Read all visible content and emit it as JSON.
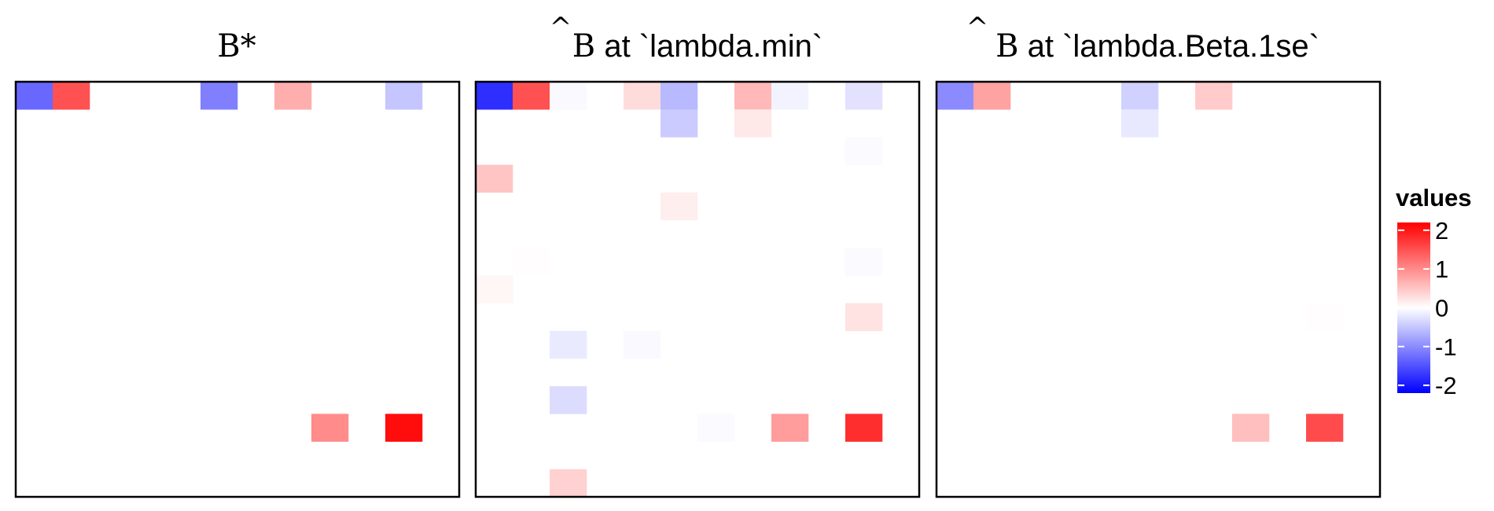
{
  "chart_data": {
    "type": "heatmap",
    "grid": {
      "rows": 15,
      "cols": 12
    },
    "color_scale": {
      "low": "#0000FF",
      "mid": "#FFFFFF",
      "high": "#FF0000",
      "domain": [
        -2.2,
        2.2
      ]
    },
    "legend": {
      "title": "values",
      "ticks": [
        2,
        1,
        0,
        -1,
        -2
      ],
      "tick_labels": [
        "2",
        "1",
        "0",
        "-1",
        "-2"
      ],
      "placement": "right"
    },
    "panels": [
      {
        "title_symbol": "B*",
        "title_hat": "",
        "title_suffix": "",
        "cells": [
          {
            "row": 0,
            "col": 0,
            "value": -1.3
          },
          {
            "row": 0,
            "col": 1,
            "value": 1.5
          },
          {
            "row": 0,
            "col": 5,
            "value": -1.1
          },
          {
            "row": 0,
            "col": 7,
            "value": 0.7
          },
          {
            "row": 0,
            "col": 10,
            "value": -0.5
          },
          {
            "row": 12,
            "col": 8,
            "value": 1.0
          },
          {
            "row": 12,
            "col": 10,
            "value": 2.1
          }
        ]
      },
      {
        "title_symbol": "B",
        "title_hat": "^",
        "title_suffix": " at `lambda.min`",
        "cells": [
          {
            "row": 0,
            "col": 0,
            "value": -1.8
          },
          {
            "row": 0,
            "col": 1,
            "value": 1.5
          },
          {
            "row": 0,
            "col": 2,
            "value": -0.05
          },
          {
            "row": 0,
            "col": 4,
            "value": 0.3
          },
          {
            "row": 0,
            "col": 5,
            "value": -0.6
          },
          {
            "row": 0,
            "col": 7,
            "value": 0.6
          },
          {
            "row": 0,
            "col": 8,
            "value": -0.1
          },
          {
            "row": 0,
            "col": 10,
            "value": -0.25
          },
          {
            "row": 1,
            "col": 5,
            "value": -0.45
          },
          {
            "row": 1,
            "col": 7,
            "value": 0.2
          },
          {
            "row": 2,
            "col": 10,
            "value": -0.04
          },
          {
            "row": 3,
            "col": 0,
            "value": 0.5
          },
          {
            "row": 4,
            "col": 5,
            "value": 0.15
          },
          {
            "row": 6,
            "col": 1,
            "value": 0.02
          },
          {
            "row": 6,
            "col": 10,
            "value": -0.04
          },
          {
            "row": 7,
            "col": 0,
            "value": 0.08
          },
          {
            "row": 8,
            "col": 10,
            "value": 0.25
          },
          {
            "row": 9,
            "col": 2,
            "value": -0.18
          },
          {
            "row": 9,
            "col": 4,
            "value": -0.05
          },
          {
            "row": 11,
            "col": 2,
            "value": -0.3
          },
          {
            "row": 12,
            "col": 6,
            "value": -0.04
          },
          {
            "row": 12,
            "col": 8,
            "value": 0.85
          },
          {
            "row": 12,
            "col": 10,
            "value": 1.8
          },
          {
            "row": 14,
            "col": 2,
            "value": 0.4
          }
        ]
      },
      {
        "title_symbol": "B",
        "title_hat": "^",
        "title_suffix": " at `lambda.Beta.1se`",
        "cells": [
          {
            "row": 0,
            "col": 0,
            "value": -1.0
          },
          {
            "row": 0,
            "col": 1,
            "value": 0.8
          },
          {
            "row": 0,
            "col": 5,
            "value": -0.4
          },
          {
            "row": 0,
            "col": 7,
            "value": 0.45
          },
          {
            "row": 1,
            "col": 5,
            "value": -0.2
          },
          {
            "row": 8,
            "col": 10,
            "value": 0.02
          },
          {
            "row": 12,
            "col": 8,
            "value": 0.55
          },
          {
            "row": 12,
            "col": 10,
            "value": 1.55
          }
        ]
      }
    ]
  }
}
